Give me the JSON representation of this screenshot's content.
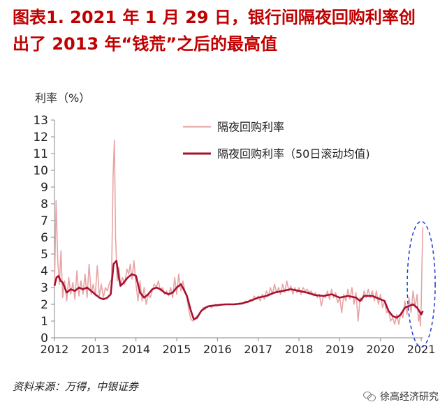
{
  "title_line1": "图表1. 2021 年 1 月 29 日，银行间隔夜回购利率创",
  "title_line2": "出了 2013 年“钱荒”之后的最高值",
  "source": "资料来源：万得，中银证券",
  "watermark": "徐高经济研究",
  "colors": {
    "daily": "#e8a4a4",
    "avg": "#a8102e",
    "highlight": "#1f3bd6",
    "title": "#c00000"
  },
  "chart_data": {
    "type": "line",
    "ylabel": "利率（%）",
    "ylim": [
      0,
      13
    ],
    "yticks": [
      0,
      1,
      2,
      3,
      4,
      5,
      6,
      7,
      8,
      9,
      10,
      11,
      12,
      13
    ],
    "xlim": [
      2012.0,
      2021.05
    ],
    "xticks": [
      2012,
      2013,
      2014,
      2015,
      2016,
      2017,
      2018,
      2019,
      2020,
      2021
    ],
    "legend_position": "top-right",
    "series": [
      {
        "name": "隔夜回购利率",
        "points": [
          [
            2012.0,
            3.0
          ],
          [
            2012.04,
            8.2
          ],
          [
            2012.08,
            4.6
          ],
          [
            2012.12,
            3.2
          ],
          [
            2012.16,
            5.2
          ],
          [
            2012.2,
            2.4
          ],
          [
            2012.25,
            3.4
          ],
          [
            2012.3,
            2.2
          ],
          [
            2012.35,
            3.6
          ],
          [
            2012.4,
            2.6
          ],
          [
            2012.45,
            3.3
          ],
          [
            2012.5,
            2.3
          ],
          [
            2012.55,
            4.0
          ],
          [
            2012.6,
            2.5
          ],
          [
            2012.65,
            3.4
          ],
          [
            2012.7,
            2.6
          ],
          [
            2012.75,
            3.8
          ],
          [
            2012.8,
            2.4
          ],
          [
            2012.85,
            4.4
          ],
          [
            2012.9,
            2.6
          ],
          [
            2012.95,
            3.2
          ],
          [
            2013.0,
            2.5
          ],
          [
            2013.05,
            4.3
          ],
          [
            2013.1,
            2.5
          ],
          [
            2013.15,
            3.2
          ],
          [
            2013.2,
            2.4
          ],
          [
            2013.25,
            3.0
          ],
          [
            2013.3,
            2.8
          ],
          [
            2013.35,
            3.3
          ],
          [
            2013.4,
            3.5
          ],
          [
            2013.44,
            9.8
          ],
          [
            2013.47,
            11.8
          ],
          [
            2013.5,
            6.0
          ],
          [
            2013.54,
            3.4
          ],
          [
            2013.58,
            4.2
          ],
          [
            2013.62,
            3.2
          ],
          [
            2013.67,
            3.6
          ],
          [
            2013.72,
            3.2
          ],
          [
            2013.78,
            4.1
          ],
          [
            2013.82,
            3.8
          ],
          [
            2013.86,
            4.4
          ],
          [
            2013.9,
            3.5
          ],
          [
            2013.95,
            4.6
          ],
          [
            2014.0,
            3.2
          ],
          [
            2014.05,
            2.2
          ],
          [
            2014.1,
            3.4
          ],
          [
            2014.15,
            2.2
          ],
          [
            2014.2,
            3.0
          ],
          [
            2014.25,
            2.0
          ],
          [
            2014.3,
            2.6
          ],
          [
            2014.35,
            2.4
          ],
          [
            2014.4,
            2.8
          ],
          [
            2014.45,
            3.2
          ],
          [
            2014.5,
            3.0
          ],
          [
            2014.55,
            3.4
          ],
          [
            2014.6,
            2.8
          ],
          [
            2014.65,
            3.0
          ],
          [
            2014.7,
            2.6
          ],
          [
            2014.75,
            2.8
          ],
          [
            2014.8,
            2.5
          ],
          [
            2014.85,
            3.0
          ],
          [
            2014.9,
            2.4
          ],
          [
            2014.95,
            3.6
          ],
          [
            2015.0,
            2.6
          ],
          [
            2015.05,
            3.8
          ],
          [
            2015.1,
            2.8
          ],
          [
            2015.15,
            3.4
          ],
          [
            2015.2,
            2.8
          ],
          [
            2015.25,
            2.4
          ],
          [
            2015.3,
            1.6
          ],
          [
            2015.35,
            1.1
          ],
          [
            2015.4,
            1.0
          ],
          [
            2015.45,
            1.2
          ],
          [
            2015.5,
            1.3
          ],
          [
            2015.55,
            1.4
          ],
          [
            2015.6,
            1.6
          ],
          [
            2015.65,
            1.8
          ],
          [
            2015.7,
            1.7
          ],
          [
            2015.75,
            1.9
          ],
          [
            2015.8,
            1.9
          ],
          [
            2015.85,
            1.8
          ],
          [
            2015.9,
            1.9
          ],
          [
            2015.95,
            2.0
          ],
          [
            2016.0,
            1.9
          ],
          [
            2016.05,
            2.0
          ],
          [
            2016.1,
            2.0
          ],
          [
            2016.15,
            2.0
          ],
          [
            2016.2,
            2.0
          ],
          [
            2016.25,
            2.0
          ],
          [
            2016.3,
            2.0
          ],
          [
            2016.35,
            2.0
          ],
          [
            2016.4,
            2.0
          ],
          [
            2016.45,
            2.0
          ],
          [
            2016.5,
            2.0
          ],
          [
            2016.55,
            2.1
          ],
          [
            2016.6,
            2.0
          ],
          [
            2016.65,
            2.1
          ],
          [
            2016.7,
            2.2
          ],
          [
            2016.75,
            2.1
          ],
          [
            2016.8,
            2.3
          ],
          [
            2016.85,
            2.2
          ],
          [
            2016.9,
            2.5
          ],
          [
            2016.95,
            2.3
          ],
          [
            2017.0,
            2.5
          ],
          [
            2017.05,
            2.2
          ],
          [
            2017.1,
            2.6
          ],
          [
            2017.15,
            2.3
          ],
          [
            2017.2,
            2.8
          ],
          [
            2017.25,
            2.5
          ],
          [
            2017.3,
            3.0
          ],
          [
            2017.35,
            2.6
          ],
          [
            2017.4,
            3.2
          ],
          [
            2017.45,
            2.7
          ],
          [
            2017.5,
            3.0
          ],
          [
            2017.55,
            2.6
          ],
          [
            2017.6,
            3.2
          ],
          [
            2017.65,
            2.7
          ],
          [
            2017.7,
            3.4
          ],
          [
            2017.75,
            2.8
          ],
          [
            2017.8,
            3.1
          ],
          [
            2017.85,
            2.6
          ],
          [
            2017.9,
            3.0
          ],
          [
            2017.95,
            2.7
          ],
          [
            2018.0,
            3.0
          ],
          [
            2018.05,
            2.6
          ],
          [
            2018.1,
            3.0
          ],
          [
            2018.15,
            2.8
          ],
          [
            2018.2,
            2.9
          ],
          [
            2018.25,
            2.7
          ],
          [
            2018.3,
            2.8
          ],
          [
            2018.35,
            2.5
          ],
          [
            2018.4,
            2.7
          ],
          [
            2018.45,
            2.4
          ],
          [
            2018.5,
            2.6
          ],
          [
            2018.55,
            1.9
          ],
          [
            2018.6,
            2.5
          ],
          [
            2018.65,
            2.4
          ],
          [
            2018.7,
            2.8
          ],
          [
            2018.75,
            2.3
          ],
          [
            2018.8,
            2.9
          ],
          [
            2018.85,
            2.4
          ],
          [
            2018.9,
            2.7
          ],
          [
            2018.95,
            2.1
          ],
          [
            2019.0,
            2.4
          ],
          [
            2019.05,
            1.5
          ],
          [
            2019.1,
            2.6
          ],
          [
            2019.15,
            2.2
          ],
          [
            2019.2,
            2.9
          ],
          [
            2019.25,
            2.3
          ],
          [
            2019.3,
            3.0
          ],
          [
            2019.35,
            2.0
          ],
          [
            2019.4,
            2.7
          ],
          [
            2019.45,
            1.0
          ],
          [
            2019.5,
            2.4
          ],
          [
            2019.55,
            2.2
          ],
          [
            2019.6,
            2.8
          ],
          [
            2019.65,
            2.4
          ],
          [
            2019.7,
            2.9
          ],
          [
            2019.75,
            2.4
          ],
          [
            2019.8,
            2.8
          ],
          [
            2019.85,
            2.2
          ],
          [
            2019.9,
            2.8
          ],
          [
            2019.95,
            2.0
          ],
          [
            2020.0,
            2.6
          ],
          [
            2020.05,
            1.8
          ],
          [
            2020.1,
            2.2
          ],
          [
            2020.15,
            1.5
          ],
          [
            2020.2,
            1.6
          ],
          [
            2020.25,
            1.0
          ],
          [
            2020.3,
            1.2
          ],
          [
            2020.35,
            0.8
          ],
          [
            2020.4,
            1.4
          ],
          [
            2020.45,
            0.8
          ],
          [
            2020.5,
            1.5
          ],
          [
            2020.55,
            1.2
          ],
          [
            2020.6,
            2.2
          ],
          [
            2020.65,
            1.4
          ],
          [
            2020.7,
            2.4
          ],
          [
            2020.75,
            1.5
          ],
          [
            2020.8,
            2.8
          ],
          [
            2020.85,
            1.8
          ],
          [
            2020.9,
            2.6
          ],
          [
            2020.93,
            1.0
          ],
          [
            2020.96,
            1.4
          ],
          [
            2020.98,
            0.7
          ],
          [
            2021.0,
            2.0
          ],
          [
            2021.02,
            4.5
          ],
          [
            2021.04,
            6.6
          ]
        ]
      },
      {
        "name": "隔夜回购利率（50日滚动均值)",
        "points": [
          [
            2012.0,
            3.1
          ],
          [
            2012.05,
            3.6
          ],
          [
            2012.1,
            3.7
          ],
          [
            2012.15,
            3.4
          ],
          [
            2012.2,
            3.3
          ],
          [
            2012.3,
            2.7
          ],
          [
            2012.4,
            2.9
          ],
          [
            2012.5,
            2.8
          ],
          [
            2012.6,
            3.0
          ],
          [
            2012.7,
            2.9
          ],
          [
            2012.8,
            3.0
          ],
          [
            2012.9,
            2.8
          ],
          [
            2013.0,
            2.6
          ],
          [
            2013.1,
            2.4
          ],
          [
            2013.2,
            2.3
          ],
          [
            2013.3,
            2.4
          ],
          [
            2013.38,
            2.6
          ],
          [
            2013.45,
            4.4
          ],
          [
            2013.52,
            4.6
          ],
          [
            2013.58,
            3.6
          ],
          [
            2013.62,
            3.1
          ],
          [
            2013.7,
            3.3
          ],
          [
            2013.8,
            3.6
          ],
          [
            2013.9,
            3.8
          ],
          [
            2014.0,
            3.7
          ],
          [
            2014.05,
            3.2
          ],
          [
            2014.1,
            2.7
          ],
          [
            2014.2,
            2.4
          ],
          [
            2014.3,
            2.6
          ],
          [
            2014.4,
            2.9
          ],
          [
            2014.5,
            3.0
          ],
          [
            2014.6,
            2.9
          ],
          [
            2014.7,
            2.7
          ],
          [
            2014.8,
            2.6
          ],
          [
            2014.9,
            2.7
          ],
          [
            2015.0,
            3.0
          ],
          [
            2015.1,
            3.2
          ],
          [
            2015.15,
            3.0
          ],
          [
            2015.25,
            2.5
          ],
          [
            2015.35,
            1.6
          ],
          [
            2015.42,
            1.1
          ],
          [
            2015.5,
            1.2
          ],
          [
            2015.6,
            1.6
          ],
          [
            2015.7,
            1.8
          ],
          [
            2015.8,
            1.9
          ],
          [
            2016.0,
            1.95
          ],
          [
            2016.2,
            2.0
          ],
          [
            2016.4,
            2.0
          ],
          [
            2016.6,
            2.05
          ],
          [
            2016.8,
            2.2
          ],
          [
            2017.0,
            2.4
          ],
          [
            2017.2,
            2.5
          ],
          [
            2017.4,
            2.7
          ],
          [
            2017.6,
            2.8
          ],
          [
            2017.8,
            2.9
          ],
          [
            2018.0,
            2.8
          ],
          [
            2018.2,
            2.7
          ],
          [
            2018.4,
            2.55
          ],
          [
            2018.6,
            2.5
          ],
          [
            2018.8,
            2.6
          ],
          [
            2019.0,
            2.4
          ],
          [
            2019.2,
            2.5
          ],
          [
            2019.4,
            2.4
          ],
          [
            2019.5,
            2.2
          ],
          [
            2019.6,
            2.5
          ],
          [
            2019.8,
            2.5
          ],
          [
            2020.0,
            2.3
          ],
          [
            2020.1,
            2.2
          ],
          [
            2020.2,
            1.6
          ],
          [
            2020.3,
            1.3
          ],
          [
            2020.4,
            1.2
          ],
          [
            2020.5,
            1.4
          ],
          [
            2020.6,
            1.8
          ],
          [
            2020.7,
            1.9
          ],
          [
            2020.8,
            2.0
          ],
          [
            2020.9,
            1.8
          ],
          [
            2020.95,
            1.6
          ],
          [
            2021.0,
            1.4
          ],
          [
            2021.04,
            1.6
          ]
        ]
      }
    ]
  }
}
